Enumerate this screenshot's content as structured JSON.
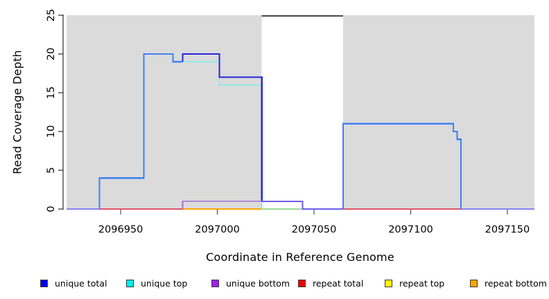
{
  "figure": {
    "bg_color": "#FFFFFF",
    "panel_bg": "#DBDBDB"
  },
  "chart_data": {
    "type": "line",
    "variant": "step-coverage-plot",
    "title": "",
    "xlabel": "Coordinate in Reference Genome",
    "ylabel": "Read Coverage Depth",
    "xlim": [
      2096922,
      2097164
    ],
    "ylim": [
      0,
      25
    ],
    "grid": false,
    "legend_position": "bottom",
    "axis_color": "#000000",
    "tick_color": "#333333",
    "x_ticks": {
      "values": [
        2096950,
        2097000,
        2097050,
        2097100,
        2097150
      ],
      "labels": [
        "2096950",
        "2097000",
        "2097050",
        "2097100",
        "2097150"
      ]
    },
    "y_ticks": {
      "values": [
        0,
        5,
        10,
        15,
        20,
        25
      ],
      "labels": [
        "0",
        "5",
        "10",
        "15",
        "20",
        "25"
      ]
    },
    "regions": [
      {
        "name": "covered-region-left",
        "x0": 2096922,
        "x1": 2097023,
        "fill": "#DBDBDB"
      },
      {
        "name": "uncovered-gap",
        "x0": 2097023,
        "x1": 2097065,
        "fill": "#FFFFFF",
        "top_border": "#4a4a4a"
      },
      {
        "name": "covered-region-right",
        "x0": 2097065,
        "x1": 2097164,
        "fill": "#DBDBDB"
      }
    ],
    "series": [
      {
        "name": "unique total",
        "color": "#0000EE",
        "changepoints": [
          [
            2096922,
            0
          ],
          [
            2096939,
            4
          ],
          [
            2096962,
            20
          ],
          [
            2096977,
            19
          ],
          [
            2096982,
            20
          ],
          [
            2097001,
            17
          ],
          [
            2097023,
            1
          ],
          [
            2097044,
            0
          ],
          [
            2097065,
            11
          ],
          [
            2097122,
            10
          ],
          [
            2097124,
            9
          ],
          [
            2097126,
            0
          ]
        ]
      },
      {
        "name": "unique top",
        "color": "#00EEEE",
        "changepoints": [
          [
            2096922,
            0
          ],
          [
            2096939,
            4
          ],
          [
            2096962,
            20
          ],
          [
            2096977,
            19
          ],
          [
            2097001,
            16
          ],
          [
            2097023,
            0
          ],
          [
            2097065,
            11
          ],
          [
            2097122,
            10
          ],
          [
            2097124,
            9
          ],
          [
            2097126,
            0
          ]
        ]
      },
      {
        "name": "unique bottom",
        "color": "#A020F0",
        "changepoints": [
          [
            2096922,
            0
          ],
          [
            2096982,
            1
          ],
          [
            2097044,
            0
          ]
        ]
      },
      {
        "name": "repeat total",
        "color": "#EE0000",
        "changepoints": [
          [
            2096922,
            0
          ]
        ]
      },
      {
        "name": "repeat top",
        "color": "#FFFF00",
        "changepoints": [
          [
            2096922,
            0
          ]
        ]
      },
      {
        "name": "repeat bottom",
        "color": "#FFA500",
        "changepoints": [
          [
            2096922,
            0
          ]
        ]
      }
    ],
    "render_segments": [
      {
        "name": "baseline-blend-left",
        "color": "#8883EF",
        "width": 2,
        "points": [
          [
            2096922,
            0
          ],
          [
            2096939,
            0
          ]
        ]
      },
      {
        "name": "baseline-repeat-total-left",
        "color": "#E0556A",
        "width": 1.6,
        "points": [
          [
            2096939,
            0
          ],
          [
            2096982,
            0
          ]
        ]
      },
      {
        "name": "baseline-repeat-bottom",
        "color": "#FFA500",
        "width": 2,
        "points": [
          [
            2096982,
            0
          ],
          [
            2097023,
            0
          ]
        ]
      },
      {
        "name": "baseline-unique-top-gap",
        "color": "#9ADA9A",
        "width": 1.6,
        "points": [
          [
            2097023,
            0
          ],
          [
            2097044,
            0
          ]
        ]
      },
      {
        "name": "baseline-repeat-total-right",
        "color": "#E0556A",
        "width": 1.6,
        "points": [
          [
            2097065,
            0
          ],
          [
            2097126,
            0
          ]
        ]
      },
      {
        "name": "baseline-blend-right",
        "color": "#8883EF",
        "width": 2,
        "points": [
          [
            2097126,
            0
          ],
          [
            2097164,
            0
          ]
        ]
      },
      {
        "name": "unique-top-line",
        "color": "#7DEDED",
        "width": 1.6,
        "points": [
          [
            2096982,
            19
          ],
          [
            2097001,
            19
          ],
          [
            2097001,
            16
          ],
          [
            2097023,
            16
          ],
          [
            2097023,
            0
          ]
        ]
      },
      {
        "name": "unique-total-left",
        "color": "#4080F5",
        "width": 2.2,
        "points": [
          [
            2096939,
            0
          ],
          [
            2096939,
            4
          ],
          [
            2096962,
            4
          ],
          [
            2096962,
            20
          ],
          [
            2096977,
            20
          ],
          [
            2096977,
            19
          ],
          [
            2096982,
            19
          ]
        ]
      },
      {
        "name": "unique-total-mid",
        "color": "#2526DC",
        "width": 2.2,
        "points": [
          [
            2096982,
            19
          ],
          [
            2096982,
            20
          ],
          [
            2097001,
            20
          ],
          [
            2097001,
            17
          ],
          [
            2097023,
            17
          ],
          [
            2097023,
            1
          ]
        ]
      },
      {
        "name": "unique-bottom-line",
        "color": "#A46FD2",
        "width": 1.8,
        "points": [
          [
            2096982,
            0
          ],
          [
            2096982,
            1
          ],
          [
            2097023,
            1
          ]
        ]
      },
      {
        "name": "unique-total-gap",
        "color": "#6C5CE8",
        "width": 2,
        "points": [
          [
            2097023,
            1
          ],
          [
            2097044,
            1
          ],
          [
            2097044,
            0
          ],
          [
            2097065,
            0
          ]
        ]
      },
      {
        "name": "unique-total-right",
        "color": "#4080F5",
        "width": 2.2,
        "points": [
          [
            2097065,
            0
          ],
          [
            2097065,
            11
          ],
          [
            2097122,
            11
          ],
          [
            2097122,
            10
          ],
          [
            2097124,
            10
          ],
          [
            2097124,
            9
          ],
          [
            2097126,
            9
          ],
          [
            2097126,
            0
          ]
        ]
      }
    ],
    "legend": [
      {
        "label": "unique total",
        "color": "#0000EE"
      },
      {
        "label": "unique top",
        "color": "#00EEEE"
      },
      {
        "label": "unique bottom",
        "color": "#A020F0"
      },
      {
        "label": "repeat total",
        "color": "#EE0000"
      },
      {
        "label": "repeat top",
        "color": "#FFFF00"
      },
      {
        "label": "repeat bottom",
        "color": "#FFA500"
      }
    ],
    "legend_swatch_border": "#3a3a3a"
  }
}
